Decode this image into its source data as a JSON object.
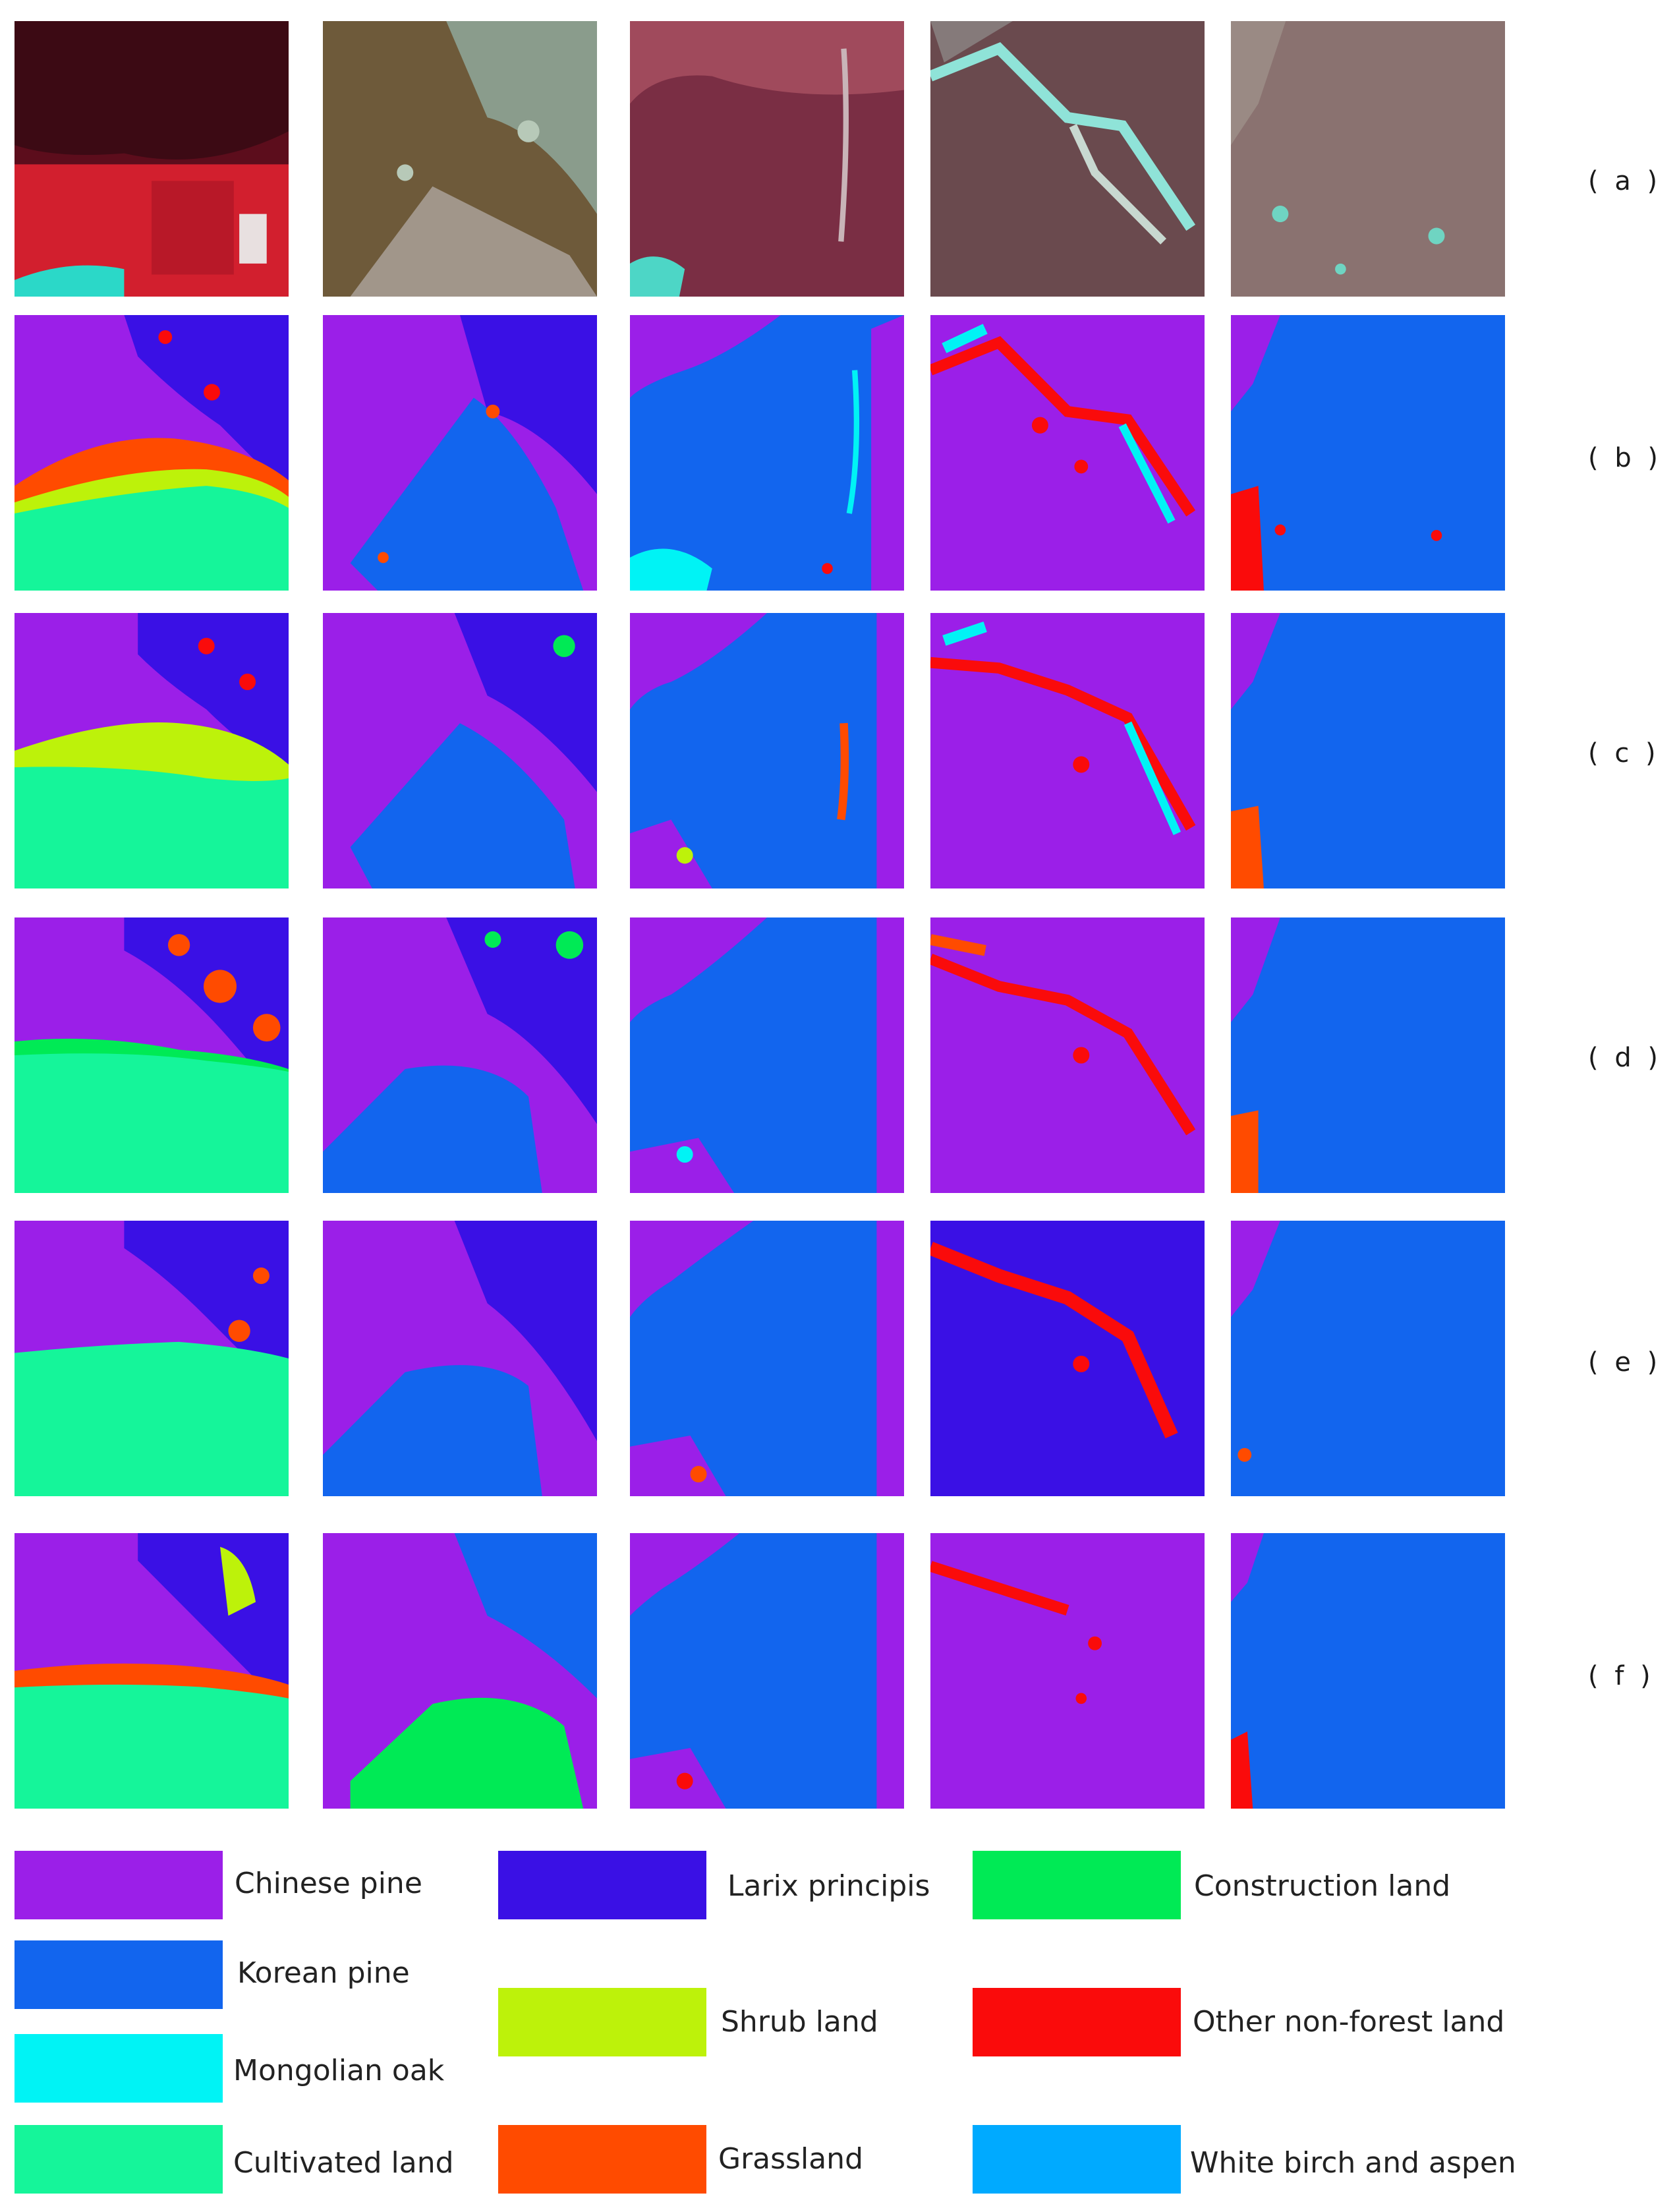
{
  "row_labels": [
    "( a )",
    "( b )",
    "( c )",
    "( d )",
    "( e )",
    "( f )"
  ],
  "legend": {
    "items": [
      {
        "label": "Chinese pine",
        "color": "#9b1fe8"
      },
      {
        "label": "Larix principis",
        "color": "#3a10e5"
      },
      {
        "label": "Construction land",
        "color": "#00ea55"
      },
      {
        "label": "Korean pine",
        "color": "#1265ee"
      },
      {
        "label": "Shrub land",
        "color": "#bdf20a"
      },
      {
        "label": "Mongolian oak",
        "color": "#00f3f5"
      },
      {
        "label": "Other non-forest land",
        "color": "#fa0b0b"
      },
      {
        "label": "Cultivated land",
        "color": "#15f59a"
      },
      {
        "label": "Grassland",
        "color": "#ff4b00"
      },
      {
        "label": "White birch and aspen",
        "color": "#00aaff"
      }
    ]
  },
  "imagery_colors": {
    "col1": [
      "#5c0d1c",
      "#d21f2e",
      "#2bd8c8"
    ],
    "col2": [
      "#6e5a3a",
      "#8a9c8c",
      "#b7c9b8"
    ],
    "col3": [
      "#7a2e44",
      "#a04a5c",
      "#4dd6c6"
    ],
    "col4": [
      "#6a4a4e",
      "#857a7a",
      "#8fe3d8"
    ],
    "col5": [
      "#8a7270",
      "#9a8a84",
      "#6fd4c2"
    ]
  }
}
